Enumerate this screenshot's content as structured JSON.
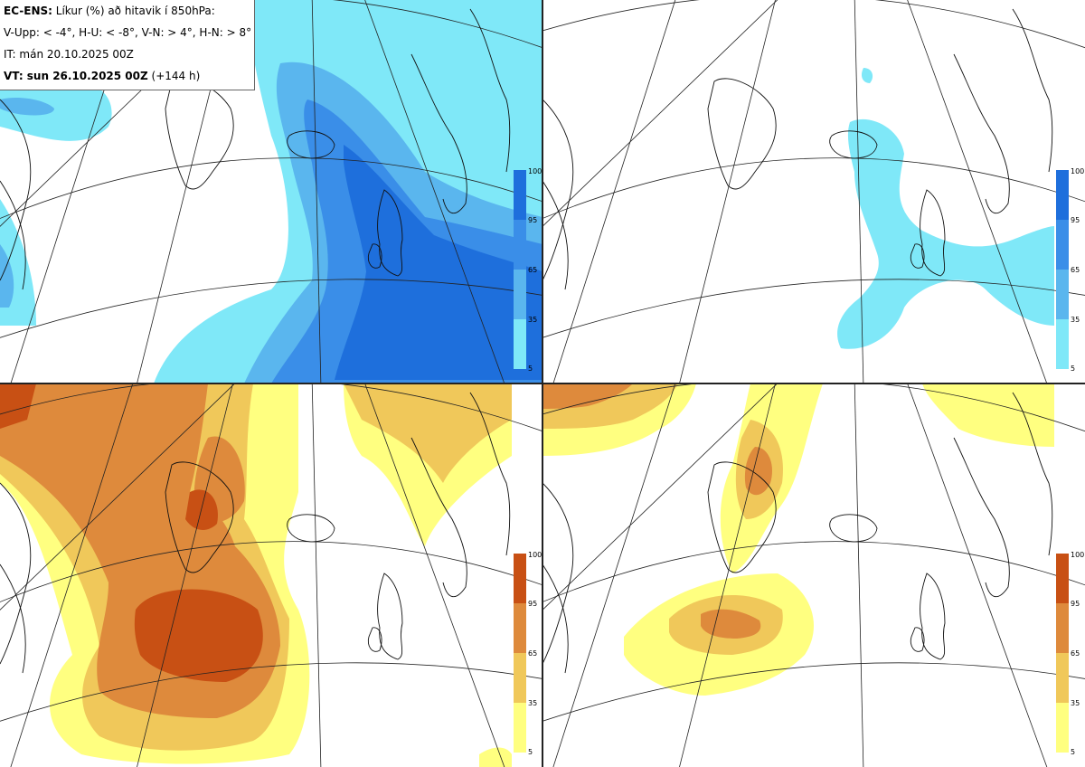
{
  "legend": {
    "model": "EC-ENS:",
    "title": "Líkur (%) að hitavik í 850hPa:",
    "criteria": "V-Upp: < -4°, H-U: < -8°, V-N: > 4°, H-N: > 8°",
    "init_time": "IT: mán 20.10.2025 00Z",
    "valid_label": "VT: sun 26.10.2025 00Z",
    "valid_lead": "(+144 h)"
  },
  "colorbars": {
    "cold": {
      "ticks": [
        "100",
        "95",
        "65",
        "35",
        "5"
      ],
      "colors": [
        "#1e6fdc",
        "#3a8ee8",
        "#5ab6ee",
        "#7fe8f8"
      ]
    },
    "warm": {
      "ticks": [
        "100",
        "95",
        "65",
        "35",
        "5"
      ],
      "colors": [
        "#c85014",
        "#de8a3c",
        "#f0c85a",
        "#ffff80"
      ]
    }
  },
  "panels": [
    {
      "name": "V-Upp",
      "variable": "cold",
      "threshold": "< -4°"
    },
    {
      "name": "H-U",
      "variable": "cold",
      "threshold": "< -8°"
    },
    {
      "name": "V-N",
      "variable": "warm",
      "threshold": "> 4°"
    },
    {
      "name": "H-N",
      "variable": "warm",
      "threshold": "> 8°"
    }
  ]
}
